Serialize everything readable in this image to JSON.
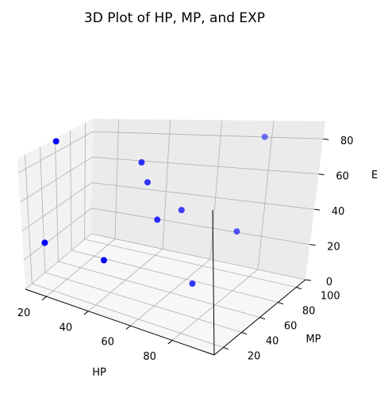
{
  "chart_data": {
    "type": "scatter3d",
    "title": "3D Plot of HP, MP, and EXP",
    "xlabel": "HP",
    "ylabel": "MP",
    "zlabel": "E",
    "xlim": [
      10,
      100
    ],
    "ylim": [
      10,
      110
    ],
    "zlim": [
      0,
      90
    ],
    "xticks": [
      20,
      40,
      60,
      80
    ],
    "yticks": [
      20,
      40,
      60,
      80,
      100
    ],
    "zticks": [
      0,
      20,
      40,
      60,
      80
    ],
    "grid": true,
    "marker_color": "#0000ff",
    "points": [
      {
        "x": 12,
        "y": 55,
        "z": 90
      },
      {
        "x": 84,
        "y": 92,
        "z": 89
      },
      {
        "x": 40,
        "y": 78,
        "z": 73
      },
      {
        "x": 12,
        "y": 35,
        "z": 24
      },
      {
        "x": 40,
        "y": 32,
        "z": 25
      },
      {
        "x": 42,
        "y": 80,
        "z": 59
      },
      {
        "x": 58,
        "y": 76,
        "z": 46
      },
      {
        "x": 50,
        "y": 70,
        "z": 40
      },
      {
        "x": 84,
        "y": 70,
        "z": 42
      },
      {
        "x": 70,
        "y": 59,
        "z": 10
      }
    ]
  },
  "colors": {
    "pane_back": "#ebebeb",
    "pane_side": "#f2f2f2",
    "pane_floor": "#f7f7f7",
    "grid": "#b0b0b0",
    "axis": "#000000"
  }
}
